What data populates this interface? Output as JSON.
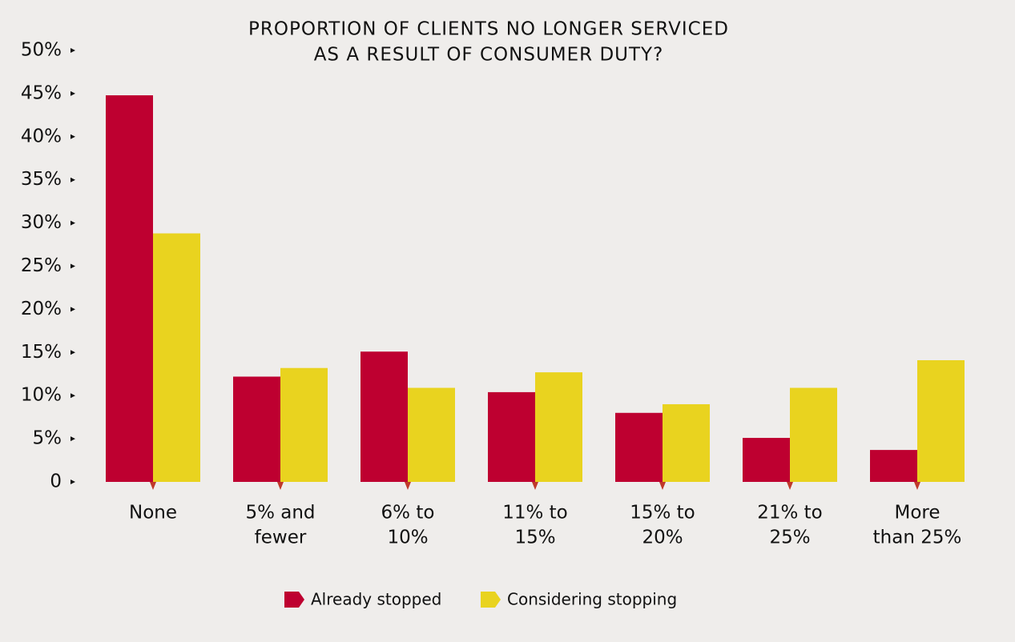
{
  "chart_data": {
    "type": "bar",
    "title": [
      "PROPORTION OF CLIENTS NO LONGER SERVICED",
      "AS A RESULT OF CONSUMER DUTY?"
    ],
    "categories": [
      [
        "None"
      ],
      [
        "5% and",
        "fewer"
      ],
      [
        "6% to",
        "10%"
      ],
      [
        "11% to",
        "15%"
      ],
      [
        "15% to",
        "20%"
      ],
      [
        "21% to",
        "25%"
      ],
      [
        "More",
        "than 25%"
      ]
    ],
    "series": [
      {
        "name": "Already stopped",
        "color": "#be0030",
        "values": [
          44.8,
          12.2,
          15.1,
          10.4,
          8.0,
          5.1,
          3.7
        ]
      },
      {
        "name": "Considering stopping",
        "color": "#e9d31f",
        "values": [
          28.8,
          13.2,
          10.9,
          12.7,
          9.0,
          10.9,
          14.1
        ]
      }
    ],
    "ylim": [
      0,
      50
    ],
    "yticks": [
      0,
      {
        "value": 5,
        "label": "5%"
      },
      {
        "value": 10,
        "label": "10%"
      },
      {
        "value": 15,
        "label": "15%"
      },
      {
        "value": 20,
        "label": "20%"
      },
      {
        "value": 25,
        "label": "25%"
      },
      {
        "value": 30,
        "label": "30%"
      },
      {
        "value": 35,
        "label": "35%"
      },
      {
        "value": 40,
        "label": "40%"
      },
      {
        "value": 45,
        "label": "45%"
      },
      {
        "value": 50,
        "label": "50%"
      }
    ],
    "grid": false
  }
}
